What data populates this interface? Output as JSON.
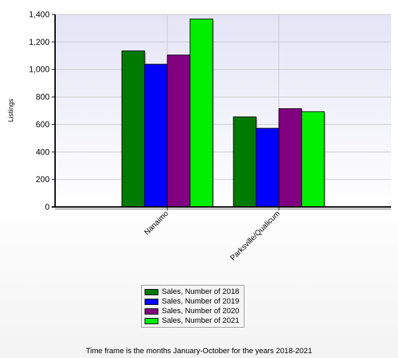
{
  "chart_data": {
    "type": "bar",
    "ylabel": "Listings",
    "categories": [
      "Nanaimo",
      "Parksville/Qualicum"
    ],
    "ylim": [
      0,
      1400
    ],
    "yticks": [
      "0",
      "200",
      "400",
      "600",
      "800",
      "1,000",
      "1,200",
      "1,400"
    ],
    "ytick_values": [
      0,
      200,
      400,
      600,
      800,
      1000,
      1200,
      1400
    ],
    "grid": true,
    "legend_position": "bottom-center",
    "series": [
      {
        "name": "Sales, Number of 2018",
        "color": "#007a00",
        "values": [
          1135,
          655
        ]
      },
      {
        "name": "Sales, Number of 2019",
        "color": "#0000ff",
        "values": [
          1038,
          572
        ]
      },
      {
        "name": "Sales, Number of 2020",
        "color": "#800080",
        "values": [
          1105,
          715
        ]
      },
      {
        "name": "Sales, Number of 2021",
        "color": "#00ee00",
        "values": [
          1367,
          693
        ]
      }
    ]
  },
  "footer": "Time frame is the months January-October for the years 2018-2021",
  "colors": {
    "plot_top": "#e4e4f6",
    "plot_bottom": "#ffffff",
    "grid": "#c8c8c8",
    "axis": "#000000"
  }
}
